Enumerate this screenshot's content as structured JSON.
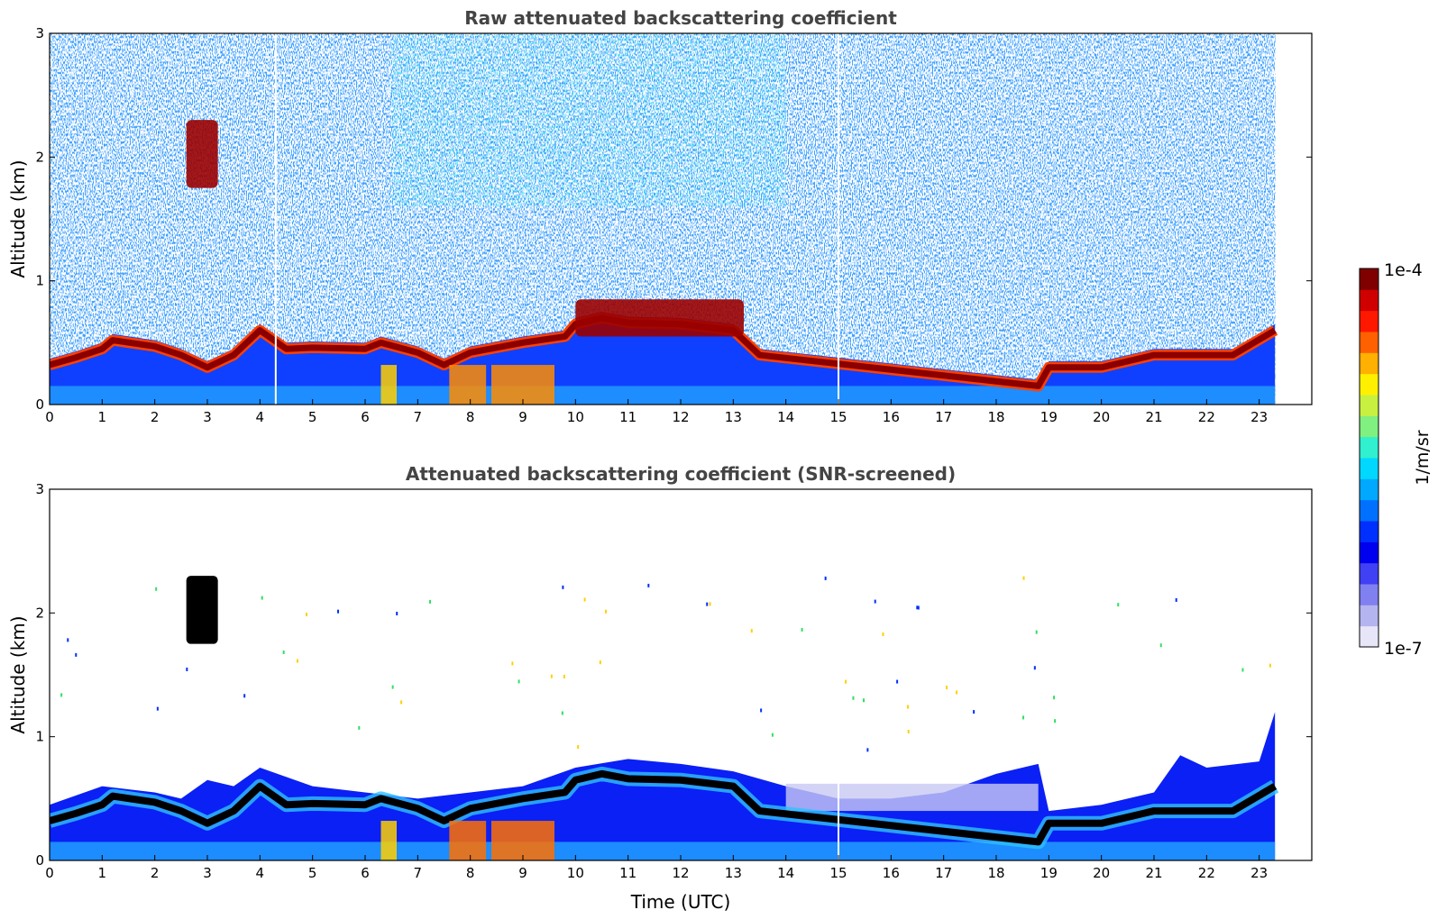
{
  "chart_data": [
    {
      "type": "heatmap",
      "title": "Raw attenuated backscattering coefficient",
      "xlabel": "",
      "ylabel": "Altitude (km)",
      "xlim": [
        0,
        24
      ],
      "ylim": [
        0,
        3
      ],
      "xticks": [
        "0",
        "1",
        "2",
        "3",
        "4",
        "5",
        "6",
        "7",
        "8",
        "9",
        "10",
        "11",
        "12",
        "13",
        "14",
        "15",
        "16",
        "17",
        "18",
        "19",
        "20",
        "21",
        "22",
        "23"
      ],
      "yticks": [
        "0",
        "1",
        "2",
        "3"
      ],
      "data_end_hour": 23.3,
      "layer_top_km": [
        [
          0,
          0.32
        ],
        [
          0.5,
          0.38
        ],
        [
          1,
          0.45
        ],
        [
          1.2,
          0.52
        ],
        [
          2,
          0.47
        ],
        [
          2.5,
          0.4
        ],
        [
          3,
          0.3
        ],
        [
          3.5,
          0.4
        ],
        [
          4,
          0.6
        ],
        [
          4.5,
          0.45
        ],
        [
          5,
          0.46
        ],
        [
          6,
          0.45
        ],
        [
          6.3,
          0.5
        ],
        [
          7,
          0.42
        ],
        [
          7.5,
          0.32
        ],
        [
          8,
          0.42
        ],
        [
          9,
          0.5
        ],
        [
          9.8,
          0.55
        ],
        [
          10,
          0.65
        ],
        [
          10.5,
          0.7
        ],
        [
          11,
          0.66
        ],
        [
          12,
          0.65
        ],
        [
          13,
          0.6
        ],
        [
          13.5,
          0.4
        ],
        [
          18.8,
          0.15
        ],
        [
          19,
          0.3
        ],
        [
          20,
          0.3
        ],
        [
          21,
          0.4
        ],
        [
          21.5,
          0.4
        ],
        [
          22.5,
          0.4
        ],
        [
          23.3,
          0.6
        ]
      ],
      "elevated_features_km": [
        {
          "t": [
            2.6,
            3.2
          ],
          "alt": [
            1.75,
            2.3
          ],
          "label": "cloud"
        },
        {
          "t": [
            10,
            13.2
          ],
          "alt": [
            0.55,
            0.85
          ],
          "label": "cloud"
        }
      ],
      "gaps_hour": [
        4.3,
        15.0
      ]
    },
    {
      "type": "heatmap",
      "title": "Attenuated backscattering coefficient (SNR-screened)",
      "xlabel": "Time (UTC)",
      "ylabel": "Altitude (km)",
      "xlim": [
        0,
        24
      ],
      "ylim": [
        0,
        3
      ],
      "xticks": [
        "0",
        "1",
        "2",
        "3",
        "4",
        "5",
        "6",
        "7",
        "8",
        "9",
        "10",
        "11",
        "12",
        "13",
        "14",
        "15",
        "16",
        "17",
        "18",
        "19",
        "20",
        "21",
        "22",
        "23"
      ],
      "yticks": [
        "0",
        "1",
        "2",
        "3"
      ],
      "data_end_hour": 23.3,
      "screened_top_km": [
        [
          0,
          0.45
        ],
        [
          1,
          0.6
        ],
        [
          2,
          0.55
        ],
        [
          2.5,
          0.5
        ],
        [
          3,
          0.65
        ],
        [
          3.5,
          0.6
        ],
        [
          4,
          0.75
        ],
        [
          5,
          0.6
        ],
        [
          6,
          0.55
        ],
        [
          7,
          0.5
        ],
        [
          8,
          0.55
        ],
        [
          9,
          0.6
        ],
        [
          10,
          0.75
        ],
        [
          11,
          0.82
        ],
        [
          12,
          0.78
        ],
        [
          13,
          0.72
        ],
        [
          14,
          0.6
        ],
        [
          15,
          0.5
        ],
        [
          16,
          0.5
        ],
        [
          17,
          0.55
        ],
        [
          18,
          0.7
        ],
        [
          18.8,
          0.78
        ],
        [
          19,
          0.4
        ],
        [
          20,
          0.45
        ],
        [
          21,
          0.55
        ],
        [
          21.5,
          0.85
        ],
        [
          22,
          0.75
        ],
        [
          23,
          0.8
        ],
        [
          23.3,
          1.2
        ]
      ]
    }
  ],
  "colorbar": {
    "label": "1/m/sr",
    "max_label": "1e-4",
    "min_label": "1e-7",
    "colors": [
      "#e6e6f8",
      "#b4b4f0",
      "#8080f0",
      "#4040f5",
      "#0000f0",
      "#0030ff",
      "#0070ff",
      "#00a8ff",
      "#00d8ff",
      "#30f0d0",
      "#80f080",
      "#c8f040",
      "#fff000",
      "#ffb000",
      "#ff6000",
      "#ff1800",
      "#d00000",
      "#800000"
    ]
  }
}
